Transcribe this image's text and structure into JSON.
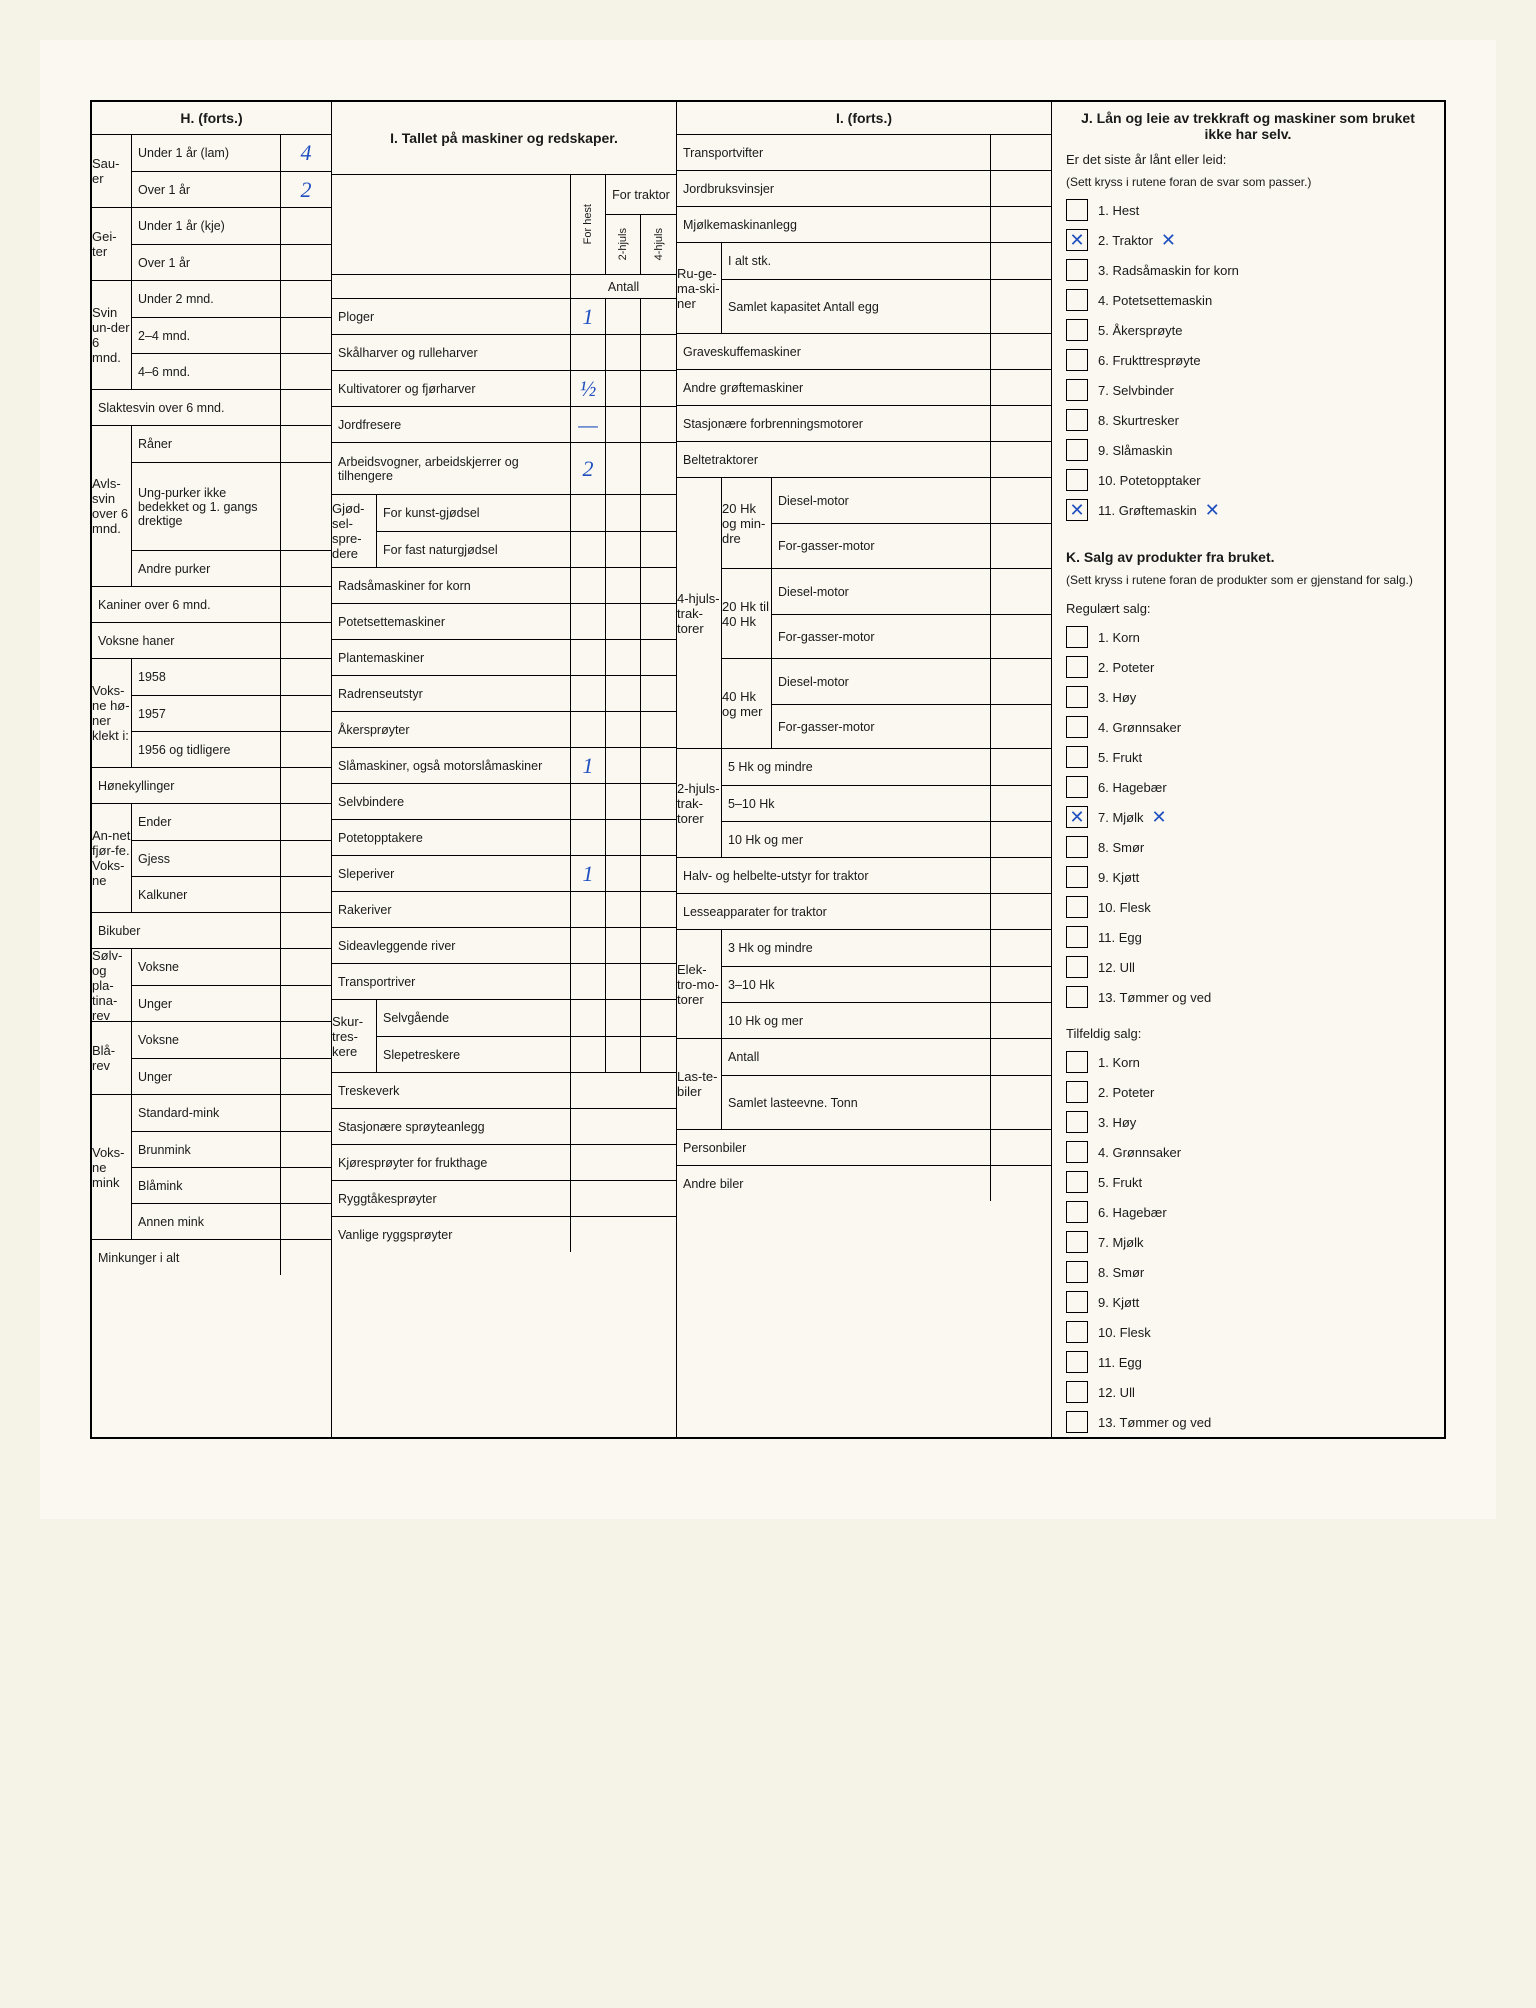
{
  "headers": {
    "h": "H.",
    "h_cont": "(forts.)",
    "i_title": "I. Tallet på maskiner og redskaper.",
    "i_cont": "I.",
    "i_cont_sub": "(forts.)",
    "j_title": "J. Lån og leie av trekkraft og maskiner som bruket ikke har selv.",
    "k_title": "K. Salg av produkter fra bruket."
  },
  "h_col": {
    "sauer": "Sau-er",
    "under1lam": "Under 1 år (lam)",
    "over1": "Over 1 år",
    "geiter": "Gei-ter",
    "under1kje": "Under 1 år (kje)",
    "svin": "Svin un-der 6 mnd.",
    "under2mnd": "Under 2 mnd.",
    "mnd24": "2–4 mnd.",
    "mnd46": "4–6 mnd.",
    "slaktesvin": "Slaktesvin over 6 mnd.",
    "avlssvin": "Avls-svin over 6 mnd.",
    "raner": "Råner",
    "ungpurker": "Ung-purker ikke bedekket og 1. gangs drektige",
    "andrepurker": "Andre purker",
    "kaniner": "Kaniner over 6 mnd.",
    "voksnehaner": "Voksne haner",
    "voksnehoner": "Voks-ne hø-ner klekt i:",
    "y1958": "1958",
    "y1957": "1957",
    "y1956": "1956 og tidligere",
    "honekyllinger": "Hønekyllinger",
    "annetfjorfe": "An-net fjør-fe. Voks-ne",
    "ender": "Ender",
    "gjess": "Gjess",
    "kalkuner": "Kalkuner",
    "bikuber": "Bikuber",
    "solvrev": "Sølv- og pla-tina-rev",
    "voksne": "Voksne",
    "unger": "Unger",
    "blarev": "Blå-rev",
    "mink": "Voks-ne mink",
    "standardmink": "Standard-mink",
    "brunmink": "Brunmink",
    "blamink": "Blåmink",
    "annenmink": "Annen mink",
    "minkunger": "Minkunger i alt",
    "val_lam": "4",
    "val_over1": "2"
  },
  "i_col": {
    "forhest": "For hest",
    "fortraktor": "For traktor",
    "hjuls2": "2-hjuls",
    "hjuls4": "4-hjuls",
    "antall": "Antall",
    "ploger": "Ploger",
    "skalharver": "Skålharver og rulleharver",
    "kultivatorer": "Kultivatorer og fjørharver",
    "jordfresere": "Jordfresere",
    "arbeidsvogner": "Arbeidsvogner, arbeidskjerrer og tilhengere",
    "gjodsel": "Gjød-sel-spre-dere",
    "kunstgjodsel": "For kunst-gjødsel",
    "naturgjodsel": "For fast naturgjødsel",
    "radsamaskiner": "Radsåmaskiner for korn",
    "potetsettemaskiner": "Potetsettemaskiner",
    "plantemaskiner": "Plantemaskiner",
    "radrenseutstyr": "Radrenseutstyr",
    "akersproyter": "Åkersprøyter",
    "slamaskiner": "Slåmaskiner, også motorslåmaskiner",
    "selvbindere": "Selvbindere",
    "potetopptakere": "Potetopptakere",
    "sleperiver": "Sleperiver",
    "rakeriver": "Rakeriver",
    "sideavleggende": "Sideavleggende river",
    "transportriver": "Transportriver",
    "skurtreskere": "Skur-tres-kere",
    "selvgaende": "Selvgående",
    "slepetreskere": "Slepetreskere",
    "treskeverk": "Treskeverk",
    "stasjonare": "Stasjonære sprøyteanlegg",
    "kjoresproyter": "Kjøresprøyter for frukthage",
    "ryggtake": "Ryggtåkesprøyter",
    "vanlige": "Vanlige ryggsprøyter",
    "val_ploger": "1",
    "val_kultivatorer": "½",
    "val_arbeidsvogner": "2",
    "val_slamaskiner": "1",
    "val_sleperiver": "1",
    "val_jordfresere": "—"
  },
  "i2_col": {
    "transportvifter": "Transportvifter",
    "jordbruksvinsjer": "Jordbruksvinsjer",
    "mjolkemaskin": "Mjølkemaskinanlegg",
    "rugemaskiner": "Ru-ge-ma-ski-ner",
    "ialtstk": "I alt stk.",
    "samletkapasitet": "Samlet kapasitet Antall egg",
    "graveskuffe": "Graveskuffemaskiner",
    "andregrofte": "Andre grøftemaskiner",
    "stasjonare": "Stasjonære forbrenningsmotorer",
    "beltetraktorer": "Beltetraktorer",
    "hjuls4trak": "4-hjuls-trak-torer",
    "hk20mindre": "20 Hk og min-dre",
    "hk20til40": "20 Hk til 40 Hk",
    "hk40mer": "40 Hk og mer",
    "dieselmotor": "Diesel-motor",
    "forgasser": "For-gasser-motor",
    "hjuls2trak": "2-hjuls-trak-torer",
    "hk5mindre": "5 Hk og mindre",
    "hk510": "5–10 Hk",
    "hk10mer": "10 Hk og mer",
    "halvhelbelte": "Halv- og helbelte-utstyr for traktor",
    "lesseapparater": "Lesseapparater for traktor",
    "elektromotorer": "Elek-tro-mo-torer",
    "hk3mindre": "3 Hk og mindre",
    "hk310": "3–10 Hk",
    "lastebiler": "Las-te-biler",
    "antall": "Antall",
    "samletlasteevne": "Samlet lasteevne. Tonn",
    "personbiler": "Personbiler",
    "andrebiler": "Andre biler"
  },
  "j_col": {
    "intro": "Er det siste år lånt eller leid:",
    "instruct": "(Sett kryss i rutene foran de svar som passer.)",
    "items": [
      "1. Hest",
      "2. Traktor",
      "3. Radsåmaskin for korn",
      "4. Potetsettemaskin",
      "5. Åkersprøyte",
      "6. Frukttresprøyte",
      "7. Selvbinder",
      "8. Skurtresker",
      "9. Slåmaskin",
      "10. Potetopptaker",
      "11. Grøftemaskin"
    ],
    "checked": [
      false,
      true,
      false,
      false,
      false,
      false,
      false,
      false,
      false,
      false,
      true
    ]
  },
  "k_col": {
    "instruct": "(Sett kryss i rutene foran de produkter som er gjenstand for salg.)",
    "regulart": "Regulært salg:",
    "tilfeldig": "Tilfeldig salg:",
    "items": [
      "1. Korn",
      "2. Poteter",
      "3. Høy",
      "4. Grønnsaker",
      "5. Frukt",
      "6. Hagebær",
      "7. Mjølk",
      "8. Smør",
      "9. Kjøtt",
      "10. Flesk",
      "11. Egg",
      "12. Ull",
      "13. Tømmer og ved"
    ],
    "reg_checked": [
      false,
      false,
      false,
      false,
      false,
      false,
      true,
      false,
      false,
      false,
      false,
      false,
      false
    ],
    "tilf_checked": [
      false,
      false,
      false,
      false,
      false,
      false,
      false,
      false,
      false,
      false,
      false,
      false,
      false
    ]
  },
  "x_mark": "✕"
}
